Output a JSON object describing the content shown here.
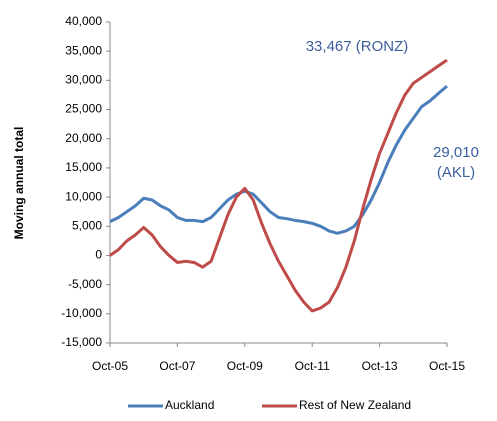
{
  "chart_data": {
    "type": "line",
    "y_label": "Moving annual total",
    "annotations": [
      "33,467 (RONZ)",
      "29,010",
      "(AKL)"
    ],
    "x": [
      2005.75,
      2006.0,
      2006.25,
      2006.5,
      2006.75,
      2007.0,
      2007.25,
      2007.5,
      2007.75,
      2008.0,
      2008.25,
      2008.5,
      2008.75,
      2009.0,
      2009.25,
      2009.5,
      2009.75,
      2010.0,
      2010.25,
      2010.5,
      2010.75,
      2011.0,
      2011.25,
      2011.5,
      2011.75,
      2012.0,
      2012.25,
      2012.5,
      2012.75,
      2013.0,
      2013.25,
      2013.5,
      2013.75,
      2014.0,
      2014.25,
      2014.5,
      2014.75,
      2015.0,
      2015.25,
      2015.5,
      2015.75
    ],
    "series": [
      {
        "name": "Auckland",
        "color": "#4a7ebb",
        "values": [
          5800,
          6500,
          7500,
          8500,
          9800,
          9500,
          8500,
          7800,
          6500,
          6000,
          6000,
          5800,
          6500,
          8000,
          9500,
          10500,
          11000,
          10500,
          9000,
          7500,
          6500,
          6300,
          6000,
          5800,
          5500,
          5000,
          4200,
          3800,
          4200,
          5000,
          7000,
          9500,
          12500,
          16000,
          19000,
          21500,
          23500,
          25500,
          26500,
          27800,
          29010
        ]
      },
      {
        "name": "Rest of New Zealand",
        "color": "#be4b48",
        "values": [
          0,
          1000,
          2500,
          3500,
          4800,
          3500,
          1500,
          0,
          -1200,
          -1000,
          -1200,
          -2000,
          -1000,
          3000,
          7000,
          10000,
          11500,
          9500,
          5500,
          2000,
          -1000,
          -3500,
          -6000,
          -8000,
          -9500,
          -9000,
          -8000,
          -5500,
          -2000,
          2500,
          8000,
          13000,
          17500,
          21000,
          24500,
          27500,
          29500,
          30500,
          31500,
          32500,
          33467
        ]
      }
    ],
    "xlim": [
      2005.75,
      2015.75
    ],
    "xticks": [
      {
        "value": 2005.75,
        "label": "Oct-05"
      },
      {
        "value": 2007.75,
        "label": "Oct-07"
      },
      {
        "value": 2009.75,
        "label": "Oct-09"
      },
      {
        "value": 2011.75,
        "label": "Oct-11"
      },
      {
        "value": 2013.75,
        "label": "Oct-13"
      },
      {
        "value": 2015.75,
        "label": "Oct-15"
      }
    ],
    "ylim": [
      -15000,
      40000
    ],
    "yticks": [
      {
        "value": -15000,
        "label": "-15,000"
      },
      {
        "value": -10000,
        "label": "-10,000"
      },
      {
        "value": -5000,
        "label": "-5,000"
      },
      0,
      {
        "value": 5000,
        "label": "5,000"
      },
      {
        "value": 10000,
        "label": "10,000"
      },
      {
        "value": 15000,
        "label": "15,000"
      },
      {
        "value": 20000,
        "label": "20,000"
      },
      {
        "value": 25000,
        "label": "25,000"
      },
      {
        "value": 30000,
        "label": "30,000"
      },
      {
        "value": 35000,
        "label": "35,000"
      },
      {
        "value": 40000,
        "label": "40,000"
      }
    ],
    "legend": "bottom"
  }
}
